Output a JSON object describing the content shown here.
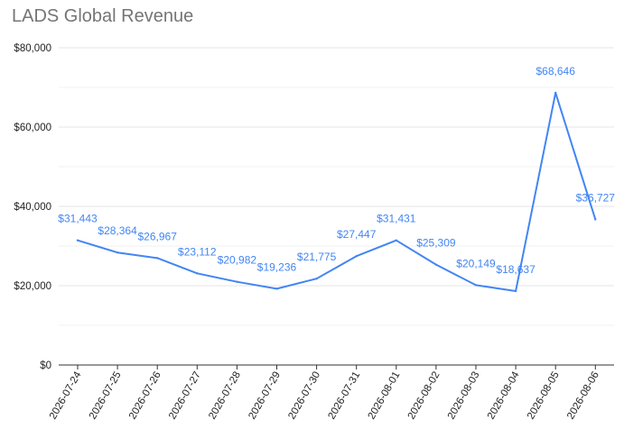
{
  "chart_data": {
    "type": "line",
    "title": "LADS Global Revenue",
    "xlabel": "",
    "ylabel": "",
    "categories": [
      "2026-07-24",
      "2026-07-25",
      "2026-07-26",
      "2026-07-27",
      "2026-07-28",
      "2026-07-29",
      "2026-07-30",
      "2026-07-31",
      "2026-08-01",
      "2026-08-02",
      "2026-08-03",
      "2026-08-04",
      "2026-08-05",
      "2026-08-06"
    ],
    "series": [
      {
        "values": [
          31443,
          28364,
          26967,
          23112,
          20982,
          19236,
          21775,
          27447,
          31431,
          25309,
          20149,
          18637,
          68646,
          36727
        ],
        "data_labels": [
          "$31,443",
          "$28,364",
          "$26,967",
          "$23,112",
          "$20,982",
          "$19,236",
          "$21,775",
          "$27,447",
          "$31,431",
          "$25,309",
          "$20,149",
          "$18,637",
          "$68,646",
          "$36,727"
        ],
        "color": "#4285f4"
      }
    ],
    "ylim": [
      0,
      80000
    ],
    "yticks": [
      0,
      20000,
      40000,
      60000,
      80000
    ],
    "ytick_labels": [
      "$0",
      "$20,000",
      "$40,000",
      "$60,000",
      "$80,000"
    ],
    "grid": true,
    "legend": "none",
    "colors": {
      "line": "#4285f4",
      "grid": "#e6e6e6",
      "axis": "#333333",
      "title": "#757575"
    }
  }
}
